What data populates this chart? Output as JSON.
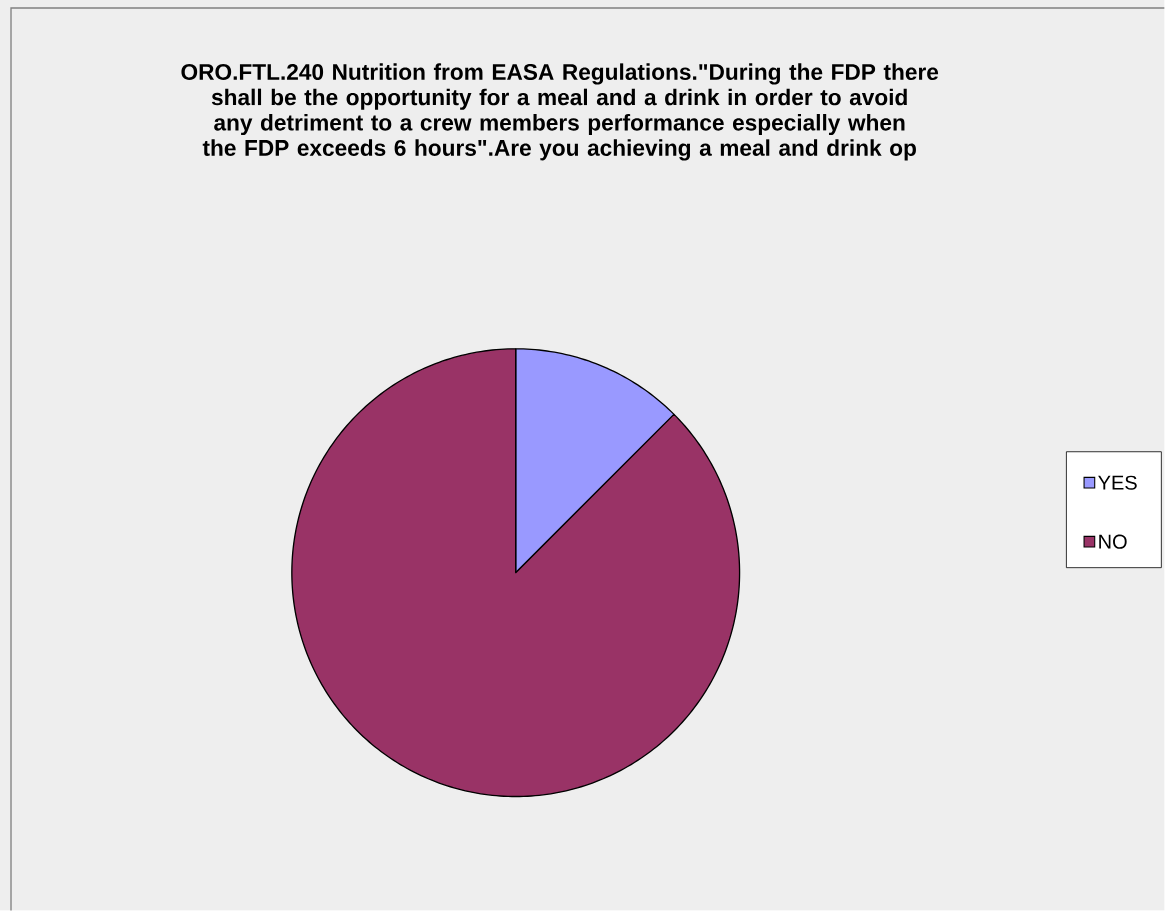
{
  "chart_data": {
    "type": "pie",
    "title": "ORO.FTL.240 Nutrition  from EASA Regulations.\"During the FDP there shall be the opportunity for a meal and a drink in order to avoid any detriment to a crew members performance especially when the FDP exceeds 6 hours\".Are you achieving a meal and drink op",
    "categories": [
      "YES",
      "NO"
    ],
    "values": [
      12.5,
      87.5
    ],
    "colors": [
      "#9999ff",
      "#993366"
    ],
    "legend": "right"
  }
}
